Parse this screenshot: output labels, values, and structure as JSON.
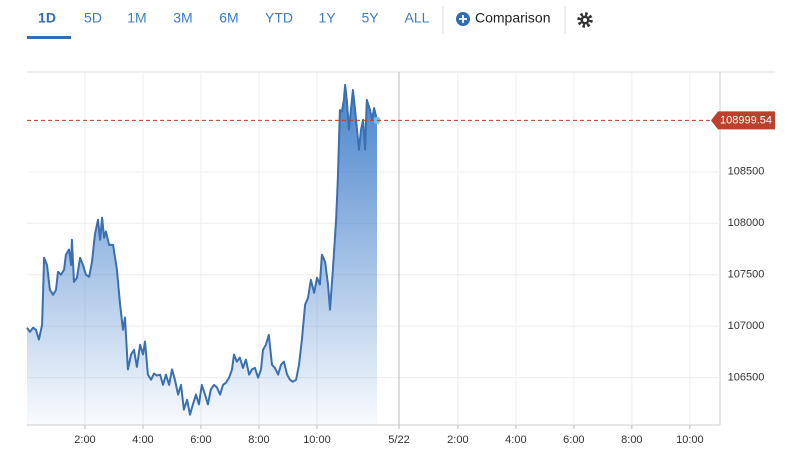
{
  "toolbar": {
    "tabs": [
      "1D",
      "5D",
      "1M",
      "3M",
      "6M",
      "YTD",
      "1Y",
      "5Y",
      "ALL"
    ],
    "active_tab": 0,
    "comparison": "Comparison"
  },
  "chart_data": {
    "type": "area",
    "x": [
      0,
      0.1,
      0.21,
      0.31,
      0.41,
      0.52,
      0.59,
      0.69,
      0.79,
      0.9,
      1.0,
      1.07,
      1.17,
      1.28,
      1.34,
      1.45,
      1.52,
      1.55,
      1.62,
      1.72,
      1.83,
      1.93,
      2.03,
      2.14,
      2.24,
      2.34,
      2.45,
      2.52,
      2.59,
      2.66,
      2.72,
      2.83,
      2.97,
      3.1,
      3.21,
      3.31,
      3.38,
      3.48,
      3.59,
      3.69,
      3.79,
      3.9,
      4.0,
      4.07,
      4.17,
      4.28,
      4.38,
      4.48,
      4.59,
      4.69,
      4.79,
      4.9,
      5.0,
      5.1,
      5.21,
      5.31,
      5.41,
      5.52,
      5.62,
      5.72,
      5.83,
      5.93,
      6.03,
      6.14,
      6.24,
      6.34,
      6.45,
      6.55,
      6.66,
      6.76,
      6.86,
      6.97,
      7.07,
      7.14,
      7.24,
      7.34,
      7.45,
      7.55,
      7.66,
      7.76,
      7.86,
      7.97,
      8.07,
      8.14,
      8.24,
      8.34,
      8.45,
      8.55,
      8.66,
      8.76,
      8.86,
      8.97,
      9.07,
      9.17,
      9.28,
      9.38,
      9.48,
      9.59,
      9.69,
      9.79,
      9.9,
      10.0,
      10.1,
      10.17,
      10.28,
      10.38,
      10.45,
      10.55,
      10.66,
      10.72,
      10.79,
      10.86,
      10.93,
      10.97,
      11.03,
      11.1,
      11.17,
      11.24,
      11.31,
      11.38,
      11.45,
      11.52,
      11.59,
      11.66,
      11.72,
      11.83,
      11.9,
      11.97,
      12.07
    ],
    "series": [
      {
        "color": "#3a6fb0",
        "values": [
          106985,
          106945,
          106985,
          106965,
          106870,
          107015,
          107665,
          107595,
          107355,
          107305,
          107355,
          107530,
          107500,
          107550,
          107695,
          107745,
          107595,
          107840,
          107430,
          107470,
          107665,
          107595,
          107500,
          107480,
          107625,
          107890,
          108035,
          107840,
          108055,
          107860,
          107920,
          107790,
          107790,
          107550,
          107210,
          106965,
          107085,
          106580,
          106725,
          106770,
          106605,
          106820,
          106725,
          106850,
          106530,
          106480,
          106540,
          106520,
          106530,
          106430,
          106530,
          106430,
          106580,
          106480,
          106335,
          106430,
          106190,
          106285,
          106140,
          106240,
          106335,
          106240,
          106430,
          106335,
          106240,
          106385,
          106430,
          106405,
          106335,
          106430,
          106450,
          106500,
          106580,
          106725,
          106655,
          106695,
          106595,
          106675,
          106530,
          106580,
          106595,
          106500,
          106580,
          106770,
          106820,
          106915,
          106625,
          106595,
          106530,
          106625,
          106655,
          106530,
          106480,
          106460,
          106480,
          106625,
          106870,
          107210,
          107275,
          107450,
          107325,
          107470,
          107405,
          107695,
          107625,
          107405,
          107160,
          107550,
          108035,
          108420,
          109100,
          109085,
          109200,
          109345,
          109200,
          108910,
          109100,
          109295,
          109120,
          108910,
          108715,
          108910,
          109005,
          108715,
          109200,
          109100,
          109005,
          109120,
          109000
        ]
      }
    ],
    "last_price": 108999.54,
    "last_price_color": "#b9412e",
    "xlim": [
      0,
      23.9
    ],
    "xticks": [
      {
        "value": 2,
        "label": "2:00"
      },
      {
        "value": 4,
        "label": "4:00"
      },
      {
        "value": 6,
        "label": "6:00"
      },
      {
        "value": 8,
        "label": "8:00"
      },
      {
        "value": 10,
        "label": "10:00"
      },
      {
        "value": 12.83,
        "label": "5/22"
      },
      {
        "value": 14.86,
        "label": "2:00"
      },
      {
        "value": 16.86,
        "label": "4:00"
      },
      {
        "value": 18.86,
        "label": "6:00"
      },
      {
        "value": 20.86,
        "label": "8:00"
      },
      {
        "value": 22.86,
        "label": "10:00"
      }
    ],
    "ylim": [
      106040,
      109470
    ],
    "yticks": [
      106500,
      107000,
      107500,
      108000,
      108500
    ],
    "grid": true
  }
}
